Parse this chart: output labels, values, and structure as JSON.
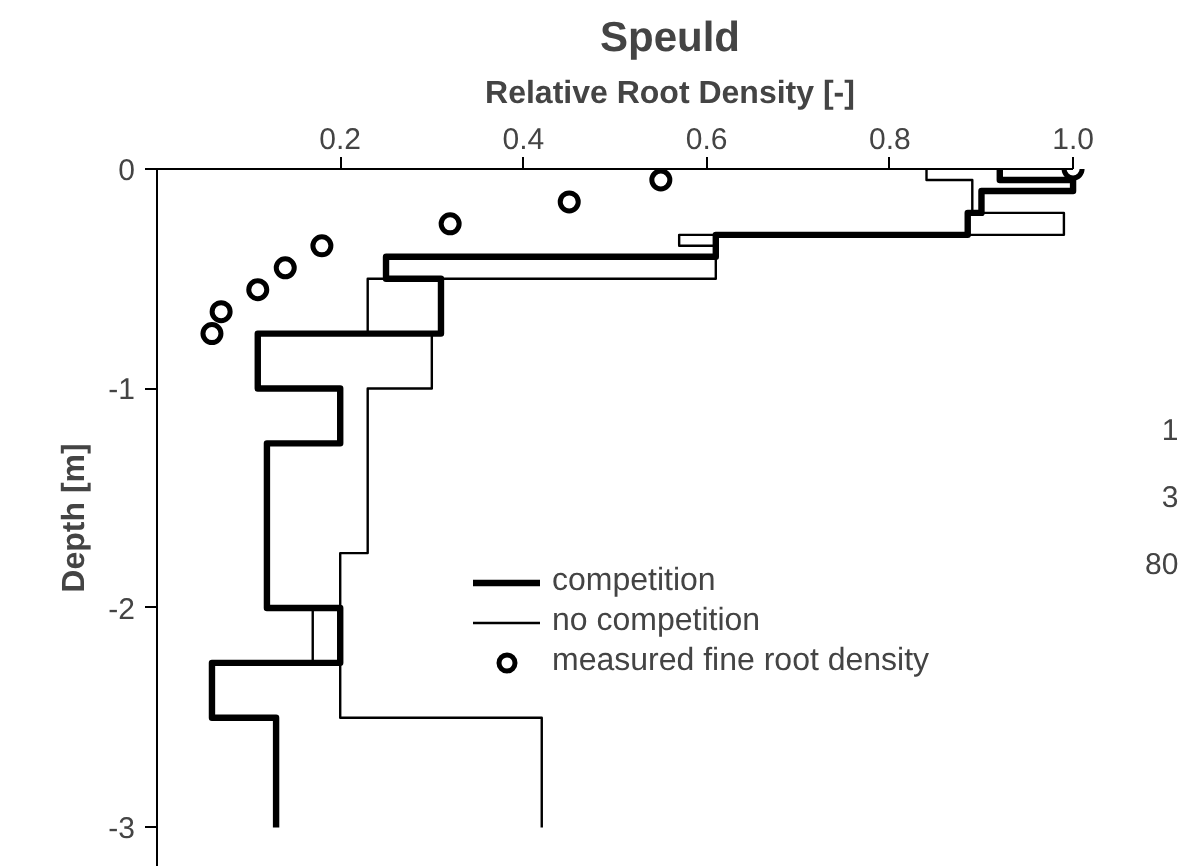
{
  "chart_data": {
    "type": "step",
    "orientation": "horizontal",
    "title": "Speuld",
    "xlabel": "Relative Root Density [-]",
    "ylabel": "Depth [m]",
    "xlim": [
      0,
      1.0
    ],
    "xticks": [
      0.2,
      0.4,
      0.6,
      0.8,
      {
        "value": 1.0,
        "label": "1.0"
      }
    ],
    "ylim": [
      -3.18,
      0
    ],
    "yticks": [
      0,
      -1,
      -2,
      -3
    ],
    "series": [
      {
        "name": "competition",
        "color": "#000000",
        "line_style": "solid",
        "x": [
          0,
          -0.05,
          -0.1,
          -0.2,
          -0.3,
          -0.4,
          -0.5,
          -0.75,
          -1.0,
          -1.25,
          -2.0,
          -2.25,
          -2.5,
          -3.0
        ],
        "values": [
          0.92,
          1.0,
          0.9,
          0.885,
          0.61,
          0.25,
          0.31,
          0.11,
          0.2,
          0.12,
          0.2,
          0.06,
          0.13,
          0.13
        ]
      },
      {
        "name": "no competition",
        "color": "#000000",
        "line_style": "solid",
        "x": [
          0,
          -0.05,
          -0.2,
          -0.3,
          -0.35,
          -0.5,
          -0.75,
          -1.0,
          -1.75,
          -2.0,
          -2.25,
          -2.5,
          -3.0
        ],
        "values": [
          0.84,
          0.89,
          0.99,
          0.57,
          0.61,
          0.23,
          0.3,
          0.23,
          0.2,
          0.17,
          0.2,
          0.42,
          0.42
        ]
      },
      {
        "name": "measured fine root density",
        "color": "#000000",
        "type": "scatter",
        "marker": "circle",
        "x": [
          0,
          -0.05,
          -0.15,
          -0.25,
          -0.35,
          -0.45,
          -0.55,
          -0.65,
          -0.75
        ],
        "values": [
          1.0,
          0.55,
          0.45,
          0.32,
          0.18,
          0.14,
          0.11,
          0.07,
          0.06
        ]
      }
    ],
    "legend": "right",
    "grid": false,
    "annotations": [
      "1",
      "3",
      "80"
    ]
  }
}
